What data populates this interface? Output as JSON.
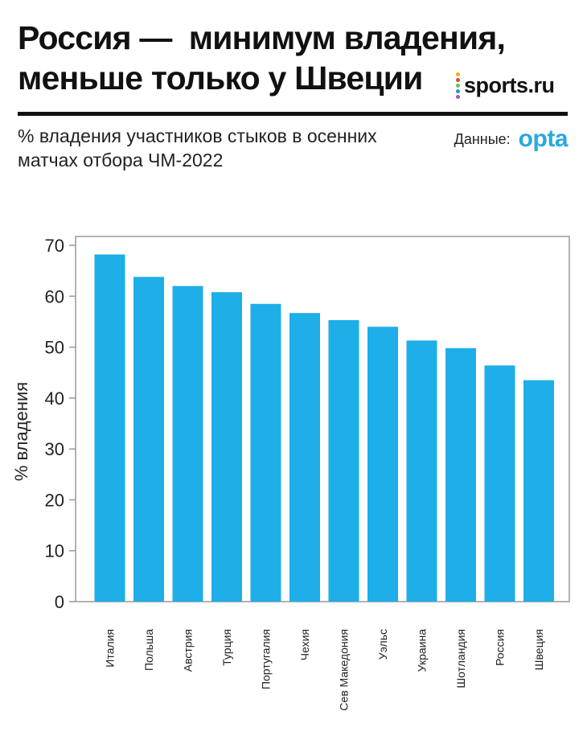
{
  "header": {
    "title_lines": [
      "Россия —  минимум владения,",
      "меньше только у Швеции"
    ],
    "subtitle": "% владения участников стыков в осенних матчах отбора ЧМ-2022"
  },
  "brand": {
    "name": "sports.ru",
    "dot_colors": [
      "#f5b400",
      "#e8423a",
      "#6cc04a",
      "#2a8fd6",
      "#9b59b6"
    ]
  },
  "source": {
    "label": "Данные:",
    "provider": "opta"
  },
  "colors": {
    "bar": "#1eaee8",
    "frame": "#999999",
    "rule": "#111111",
    "opta": "#29a9e1"
  },
  "chart_data": {
    "type": "bar",
    "title": "",
    "xlabel": "",
    "ylabel": "% владения",
    "ylim": [
      0,
      70
    ],
    "yticks": [
      0,
      10,
      20,
      30,
      40,
      50,
      60,
      70
    ],
    "grid": false,
    "categories": [
      "Италия",
      "Польша",
      "Австрия",
      "Турция",
      "Португалия",
      "Чехия",
      "Сев Македония",
      "Уэльс",
      "Украина",
      "Шотландия",
      "Россия",
      "Швеция"
    ],
    "values": [
      68.2,
      63.8,
      62.0,
      60.8,
      58.5,
      56.7,
      55.3,
      54.0,
      51.3,
      49.8,
      46.4,
      43.5
    ]
  }
}
